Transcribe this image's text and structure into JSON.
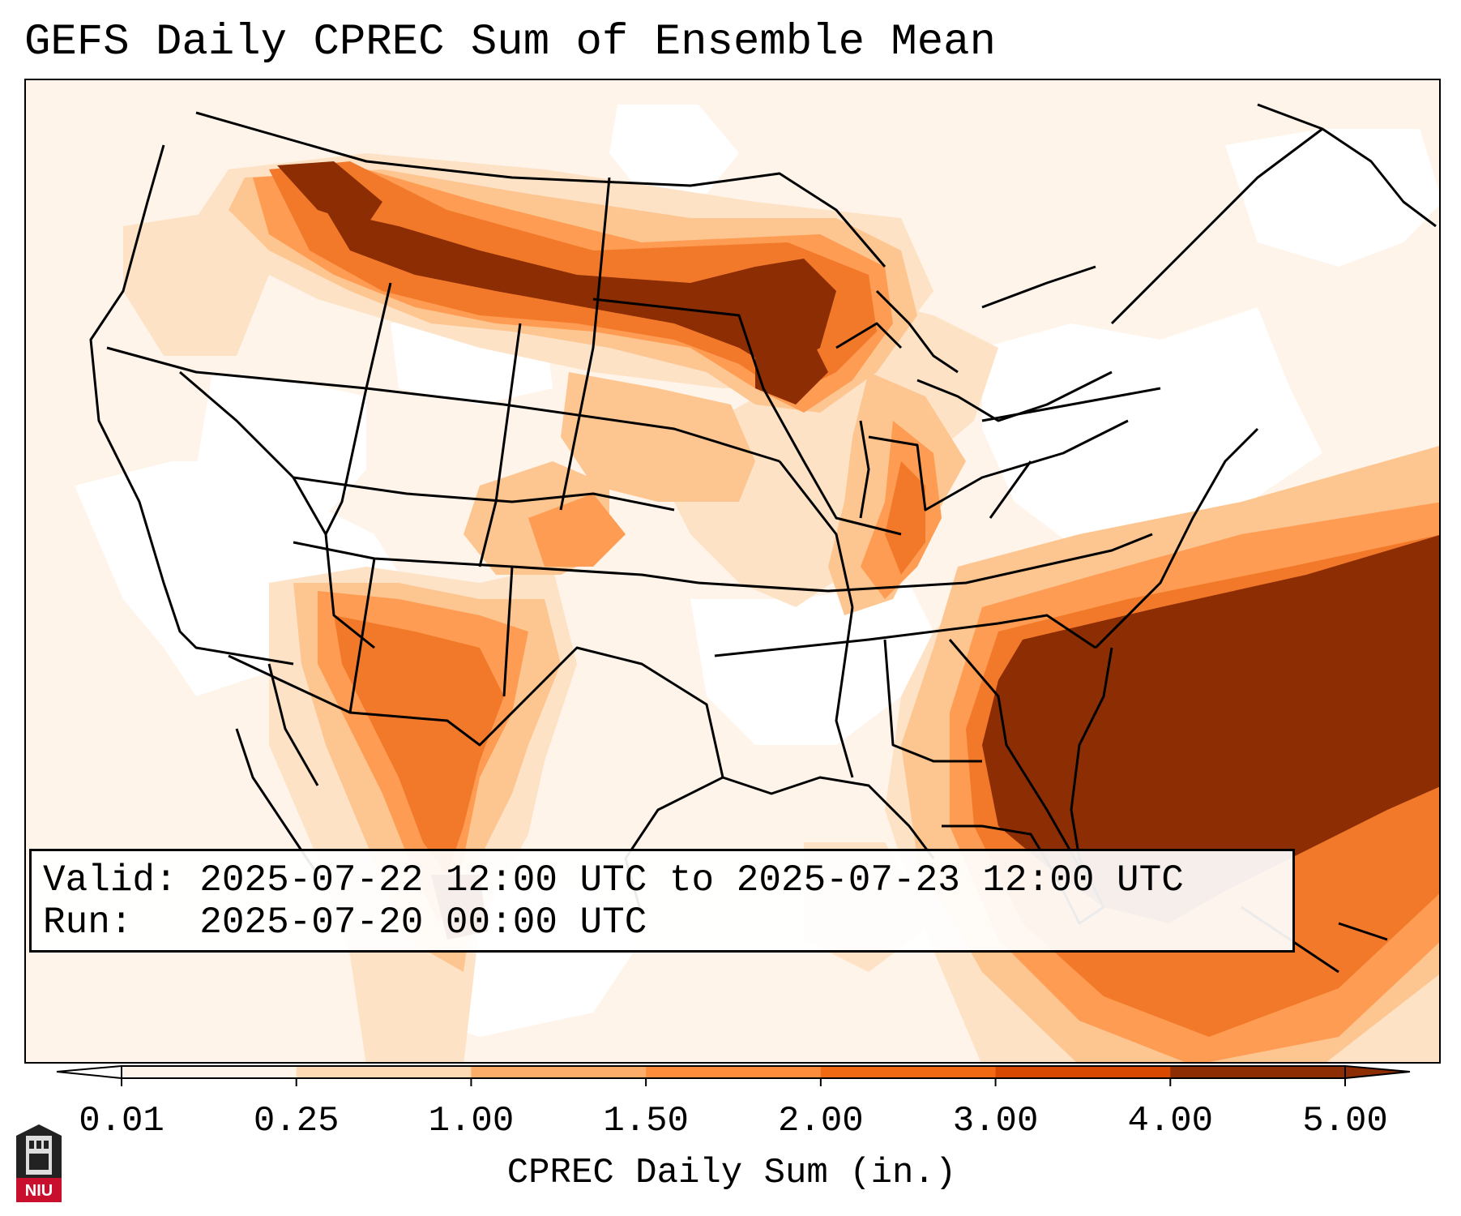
{
  "title": "GEFS Daily CPREC Sum of Ensemble Mean",
  "info": {
    "valid_label": "Valid:",
    "valid_value": "2025-07-22 12:00 UTC to 2025-07-23 12:00 UTC",
    "run_label": "Run:",
    "run_value": "2025-07-20 00:00 UTC"
  },
  "colorbar": {
    "label": "CPREC Daily Sum (in.)",
    "ticks": [
      "0.01",
      "0.25",
      "1.00",
      "1.50",
      "2.00",
      "3.00",
      "4.00",
      "5.00"
    ],
    "colors": [
      "#fff4ea",
      "#fdd9b4",
      "#fdad6a",
      "#fd8d3c",
      "#f16913",
      "#d94801",
      "#8c2d04"
    ]
  },
  "logo": {
    "text": "NIU",
    "icon": "niu-tower-logo"
  },
  "map": {
    "colors": {
      "c0": "#ffffff",
      "c1": "#fff4ea",
      "c2": "#fde2c6",
      "c3": "#fdc590",
      "c4": "#fd9c52",
      "c5": "#f3792a",
      "c6": "#d94801",
      "c7": "#8c2d04"
    }
  }
}
